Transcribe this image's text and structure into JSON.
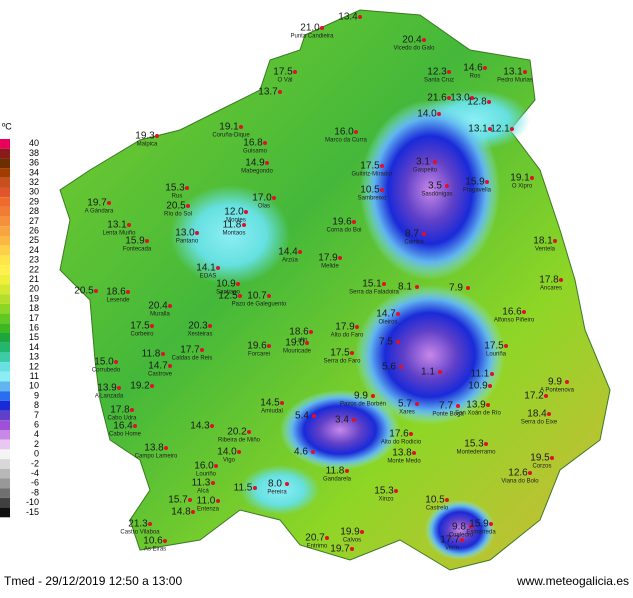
{
  "legend": {
    "unit": "ºC",
    "items": [
      {
        "label": "40",
        "color": "#e8005a"
      },
      {
        "label": "38",
        "color": "#8b1a1a"
      },
      {
        "label": "36",
        "color": "#6b2f00"
      },
      {
        "label": "34",
        "color": "#a33c00"
      },
      {
        "label": "32",
        "color": "#c8501e"
      },
      {
        "label": "30",
        "color": "#e0552a"
      },
      {
        "label": "29",
        "color": "#ee6b2d"
      },
      {
        "label": "28",
        "color": "#f07d33"
      },
      {
        "label": "27",
        "color": "#f5913a"
      },
      {
        "label": "26",
        "color": "#f8a53f"
      },
      {
        "label": "25",
        "color": "#fbb943"
      },
      {
        "label": "24",
        "color": "#fdd045"
      },
      {
        "label": "23",
        "color": "#ffe44a"
      },
      {
        "label": "22",
        "color": "#fff04d"
      },
      {
        "label": "21",
        "color": "#f0f03c"
      },
      {
        "label": "20",
        "color": "#d4e830"
      },
      {
        "label": "19",
        "color": "#b4de2a"
      },
      {
        "label": "18",
        "color": "#8ed626"
      },
      {
        "label": "17",
        "color": "#62c822"
      },
      {
        "label": "16",
        "color": "#3cb820"
      },
      {
        "label": "15",
        "color": "#1ea63e"
      },
      {
        "label": "14",
        "color": "#22b66e"
      },
      {
        "label": "13",
        "color": "#3ccca8"
      },
      {
        "label": "12",
        "color": "#66e0e0"
      },
      {
        "label": "11",
        "color": "#8ceef5"
      },
      {
        "label": "10",
        "color": "#60b4f0"
      },
      {
        "label": "9",
        "color": "#2a6ef0"
      },
      {
        "label": "8",
        "color": "#1a2ad8"
      },
      {
        "label": "7",
        "color": "#6040c8"
      },
      {
        "label": "6",
        "color": "#a050d8"
      },
      {
        "label": "4",
        "color": "#c888e8"
      },
      {
        "label": "2",
        "color": "#e8c8f0"
      },
      {
        "label": "0",
        "color": "#f4f4f4"
      },
      {
        "label": "-2",
        "color": "#d8d8d8"
      },
      {
        "label": "-4",
        "color": "#b8b8b8"
      },
      {
        "label": "-6",
        "color": "#989898"
      },
      {
        "label": "-8",
        "color": "#707070"
      },
      {
        "label": "-10",
        "color": "#404040"
      },
      {
        "label": "-15",
        "color": "#101010"
      }
    ]
  },
  "stations": [
    {
      "value": "21.0",
      "name": "Punta Candieira"
    },
    {
      "value": "13.4"
    },
    {
      "value": "20.4",
      "name": "Vicedo do Galo"
    },
    {
      "value": "17.5",
      "name": "O Vál"
    },
    {
      "value": "13.7"
    },
    {
      "value": "12.3",
      "name": "Santa Cruz"
    },
    {
      "value": "14.6",
      "name": "Ros"
    },
    {
      "value": "13.1",
      "name": "Pedro Murias"
    },
    {
      "value": "21.6"
    },
    {
      "value": "13.0"
    },
    {
      "value": "12.8"
    },
    {
      "value": "14.0"
    },
    {
      "value": "19.3",
      "name": "Malpica"
    },
    {
      "value": "19.1",
      "name": "Coruña-Dique"
    },
    {
      "value": "16.0",
      "name": "Marco da Curra"
    },
    {
      "value": "13.1"
    },
    {
      "value": "12.1"
    },
    {
      "value": "16.8",
      "name": "Guisamo"
    },
    {
      "value": "14.9",
      "name": "Mabegondo"
    },
    {
      "value": "17.5",
      "name": "Guitiriz-Mirador"
    },
    {
      "value": "3.1",
      "name": "Gaspeito"
    },
    {
      "value": "3.5",
      "name": "Sasdónigas"
    },
    {
      "value": "15.9",
      "name": "Fragavella"
    },
    {
      "value": "19.1",
      "name": "O Xipro"
    },
    {
      "value": "15.3",
      "name": "Rus"
    },
    {
      "value": "10.5",
      "name": "Sambreixo"
    },
    {
      "value": "19.7",
      "name": "A Gándara"
    },
    {
      "value": "20.5",
      "name": "Río do Sol"
    },
    {
      "value": "17.0",
      "name": "Olas"
    },
    {
      "value": "12.0",
      "name": "Montes"
    },
    {
      "value": "11.8",
      "name": "Montaos"
    },
    {
      "value": "13.1",
      "name": "Lenta Muiño"
    },
    {
      "value": "19.6",
      "name": "Corna do Boi"
    },
    {
      "value": "13.0",
      "name": "Pantano"
    },
    {
      "value": "8.7",
      "name": "Camba"
    },
    {
      "value": "15.9",
      "name": "Fontecada"
    },
    {
      "value": "18.1",
      "name": "Ventela"
    },
    {
      "value": "14.4",
      "name": "Arzúa"
    },
    {
      "value": "17.9",
      "name": "Melide"
    },
    {
      "value": "14.1",
      "name": "EOAS"
    },
    {
      "value": "10.9",
      "name": "Santiago"
    },
    {
      "value": "12.5"
    },
    {
      "value": "10.7",
      "name": "Pazo de Galeguento"
    },
    {
      "value": "15.1",
      "name": "Serra da Faladoira"
    },
    {
      "value": "8.1"
    },
    {
      "value": "7.9"
    },
    {
      "value": "17.8",
      "name": "Ancares"
    },
    {
      "value": "20.5"
    },
    {
      "value": "18.6",
      "name": "Lesende"
    },
    {
      "value": "20.4",
      "name": "Muralla"
    },
    {
      "value": "14.7",
      "name": "Oleiros"
    },
    {
      "value": "16.6",
      "name": "Alfonso Piñeiro"
    },
    {
      "value": "17.5",
      "name": "Corbeiro"
    },
    {
      "value": "20.3",
      "name": "Xesteiras"
    },
    {
      "value": "17.9",
      "name": "Alto do Faro"
    },
    {
      "value": "18.6",
      "name": "Lalín"
    },
    {
      "value": "19.6",
      "name": "Forcarei"
    },
    {
      "value": "19.0",
      "name": "Mouricade"
    },
    {
      "value": "17.7",
      "name": "Caldas de Reis"
    },
    {
      "value": "7.5"
    },
    {
      "value": "17.5",
      "name": "Serra do Faro"
    },
    {
      "value": "17.5",
      "name": "Louriña"
    },
    {
      "value": "15.0",
      "name": "Corrubedo"
    },
    {
      "value": "11.8"
    },
    {
      "value": "14.7",
      "name": "Castrove"
    },
    {
      "value": "5.6"
    },
    {
      "value": "1.1"
    },
    {
      "value": "11.1"
    },
    {
      "value": "9.9",
      "name": "A Pontenova"
    },
    {
      "value": "10.9"
    },
    {
      "value": "13.9",
      "name": "A Lanzada"
    },
    {
      "value": "19.2"
    },
    {
      "value": "9.9",
      "name": "Pazos de Borbén"
    },
    {
      "value": "17.2"
    },
    {
      "value": "18.4",
      "name": "Serra do Eixe"
    },
    {
      "value": "17.8",
      "name": "Cabo Udra"
    },
    {
      "value": "14.5",
      "name": "Amiudal"
    },
    {
      "value": "5.7",
      "name": "Xares"
    },
    {
      "value": "7.7",
      "name": "Ponte Boga"
    },
    {
      "value": "13.9",
      "name": "San Xoán de Río"
    },
    {
      "value": "5.4"
    },
    {
      "value": "3.4"
    },
    {
      "value": "17.6",
      "name": "Alto do Rodicio"
    },
    {
      "value": "16.4",
      "name": "Cabo Home"
    },
    {
      "value": "14.3"
    },
    {
      "value": "20.2",
      "name": "Ribeira de Miño"
    },
    {
      "value": "4.6"
    },
    {
      "value": "15.3",
      "name": "Montederramo"
    },
    {
      "value": "13.8",
      "name": "Campo Lameiro"
    },
    {
      "value": "14.0",
      "name": "Vigo"
    },
    {
      "value": "13.8",
      "name": "Monte Medo"
    },
    {
      "value": "19.5",
      "name": "Corzos"
    },
    {
      "value": "16.0",
      "name": "Louriño"
    },
    {
      "value": "11.8",
      "name": "Gandarela"
    },
    {
      "value": "12.6",
      "name": "Viana do Bolo"
    },
    {
      "value": "11.3",
      "name": "Alcá"
    },
    {
      "value": "11.5"
    },
    {
      "value": "8.0",
      "name": "Pereira"
    },
    {
      "value": "15.3",
      "name": "Xinzo"
    },
    {
      "value": "10.5",
      "name": "Castrelo"
    },
    {
      "value": "15.7"
    },
    {
      "value": "11.0",
      "name": "Entenza"
    },
    {
      "value": "14.8"
    },
    {
      "value": "9.8",
      "name": "Cualedro"
    },
    {
      "value": "15.9",
      "name": "Esmarreda"
    },
    {
      "value": "21.3",
      "name": "Castro Vilaboa"
    },
    {
      "value": "20.7",
      "name": "Entrimo"
    },
    {
      "value": "19.9",
      "name": "Calvos"
    },
    {
      "value": "10.6",
      "name": "As Eiras"
    },
    {
      "value": "19.7"
    },
    {
      "value": "17.7",
      "name": "Verín"
    }
  ],
  "footer": {
    "caption": "Tmed - 29/12/2019 12:50 a 13:00",
    "website": "www.meteogalicia.es"
  }
}
